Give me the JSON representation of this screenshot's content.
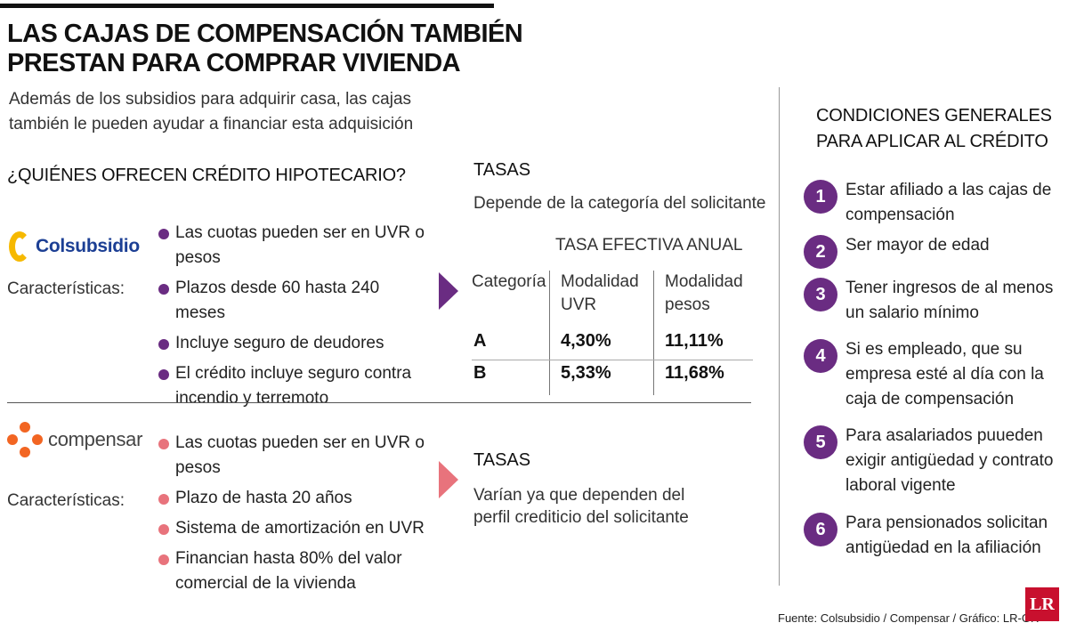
{
  "header": {
    "title_line1": "LAS CAJAS DE COMPENSACIÓN TAMBIÉN",
    "title_line2": "PRESTAN PARA COMPRAR VIVIENDA",
    "intro_line1": "Además de los subsidios para adquirir casa, las cajas",
    "intro_line2": "también le pueden ayudar a financiar esta adquisición"
  },
  "question": "¿QUIÉNES OFRECEN CRÉDITO HIPOTECARIO?",
  "colsubsidio": {
    "logo_text": "Colsubsidio",
    "label": "Características:",
    "bullet_color": "#6a2c82",
    "bullets": [
      "Las cuotas pueden ser en UVR o pesos",
      "Plazos desde 60 hasta 240 meses",
      "Incluye seguro de deudores",
      "El crédito incluye seguro contra incendio y terremoto"
    ],
    "tasas": {
      "heading": "TASAS",
      "subtitle": "Depende de la categoría del solicitante",
      "table_title": "TASA EFECTIVA ANUAL",
      "col_categoria": "Categoría",
      "col_uvr_1": "Modalidad",
      "col_uvr_2": "UVR",
      "col_pesos_1": "Modalidad",
      "col_pesos_2": "pesos",
      "rows": [
        {
          "cat": "A",
          "uvr": "4,30%",
          "pesos": "11,11%"
        },
        {
          "cat": "B",
          "uvr": "5,33%",
          "pesos": "11,68%"
        }
      ]
    }
  },
  "compensar": {
    "logo_text": "compensar",
    "label": "Características:",
    "bullet_color": "#e8737c",
    "bullets": [
      "Las cuotas pueden ser en UVR o pesos",
      "Plazo de hasta 20 años",
      "Sistema de amortización en UVR",
      "Financian hasta 80% del valor comercial de la vivienda"
    ],
    "tasas": {
      "heading": "TASAS",
      "subtitle_line1": "Varían ya que dependen del",
      "subtitle_line2": "perfil crediticio del solicitante"
    }
  },
  "conditions": {
    "heading_line1": "CONDICIONES GENERALES",
    "heading_line2": "PARA APLICAR AL CRÉDITO",
    "items": [
      {
        "n": "1",
        "text": "Estar afiliado a las cajas de compensación"
      },
      {
        "n": "2",
        "text": "Ser mayor de edad"
      },
      {
        "n": "3",
        "text": "Tener ingresos de al menos un salario mínimo"
      },
      {
        "n": "4",
        "text": "Si es empleado, que su empresa esté al día con la caja de compensación"
      },
      {
        "n": "5",
        "text": "Para asalariados puueden exigir antigüedad y contrato laboral vigente"
      },
      {
        "n": "6",
        "text": "Para pensionados solicitan antigüedad en la afiliación"
      }
    ]
  },
  "footer": {
    "source": "Fuente: Colsubsidio / Compensar / Gráfico: LR-GR",
    "logo_text": "LR"
  },
  "colors": {
    "purple": "#6a2c82",
    "pink": "#e8737c",
    "colsubsidio_blue": "#1c3f94",
    "colsubsidio_yellow": "#f6b900",
    "compensar_orange": "#f26522",
    "lr_red": "#c8102e"
  }
}
